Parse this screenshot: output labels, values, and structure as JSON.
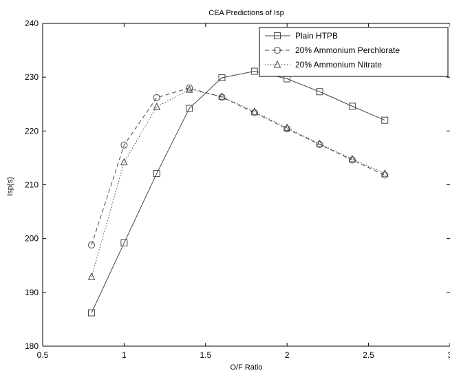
{
  "chart_data": {
    "type": "line",
    "title": "CEA Predictions of Isp",
    "xlabel": "O/F Ratio",
    "ylabel": "Isp(s)",
    "xlim": [
      0.5,
      3
    ],
    "ylim": [
      180,
      240
    ],
    "xticks": [
      0.5,
      1,
      1.5,
      2,
      2.5,
      3
    ],
    "xtick_labels": [
      "0.5",
      "1",
      "1.5",
      "2",
      "2.5",
      "3"
    ],
    "yticks": [
      180,
      190,
      200,
      210,
      220,
      230,
      240
    ],
    "ytick_labels": [
      "180",
      "190",
      "200",
      "210",
      "220",
      "230",
      "240"
    ],
    "grid": false,
    "legend_position": "top-right",
    "x": [
      0.8,
      1.0,
      1.2,
      1.4,
      1.6,
      1.8,
      2.0,
      2.2,
      2.4,
      2.6
    ],
    "series": [
      {
        "name": "Plain HTPB",
        "line_style": "solid",
        "marker": "square",
        "color": "#444444",
        "values": [
          186.2,
          199.2,
          212.1,
          224.2,
          229.9,
          231.1,
          229.7,
          227.3,
          224.6,
          222.0
        ]
      },
      {
        "name": "20% Ammonium Perchlorate",
        "line_style": "dashed",
        "marker": "circle",
        "color": "#444444",
        "values": [
          198.8,
          217.4,
          226.2,
          228.0,
          226.3,
          223.4,
          220.4,
          217.5,
          214.6,
          211.8
        ]
      },
      {
        "name": "20% Ammonium Nitrate",
        "line_style": "dotted",
        "marker": "triangle",
        "color": "#444444",
        "values": [
          192.9,
          214.2,
          224.5,
          227.7,
          226.4,
          223.6,
          220.6,
          217.6,
          214.8,
          212.1
        ]
      }
    ]
  }
}
